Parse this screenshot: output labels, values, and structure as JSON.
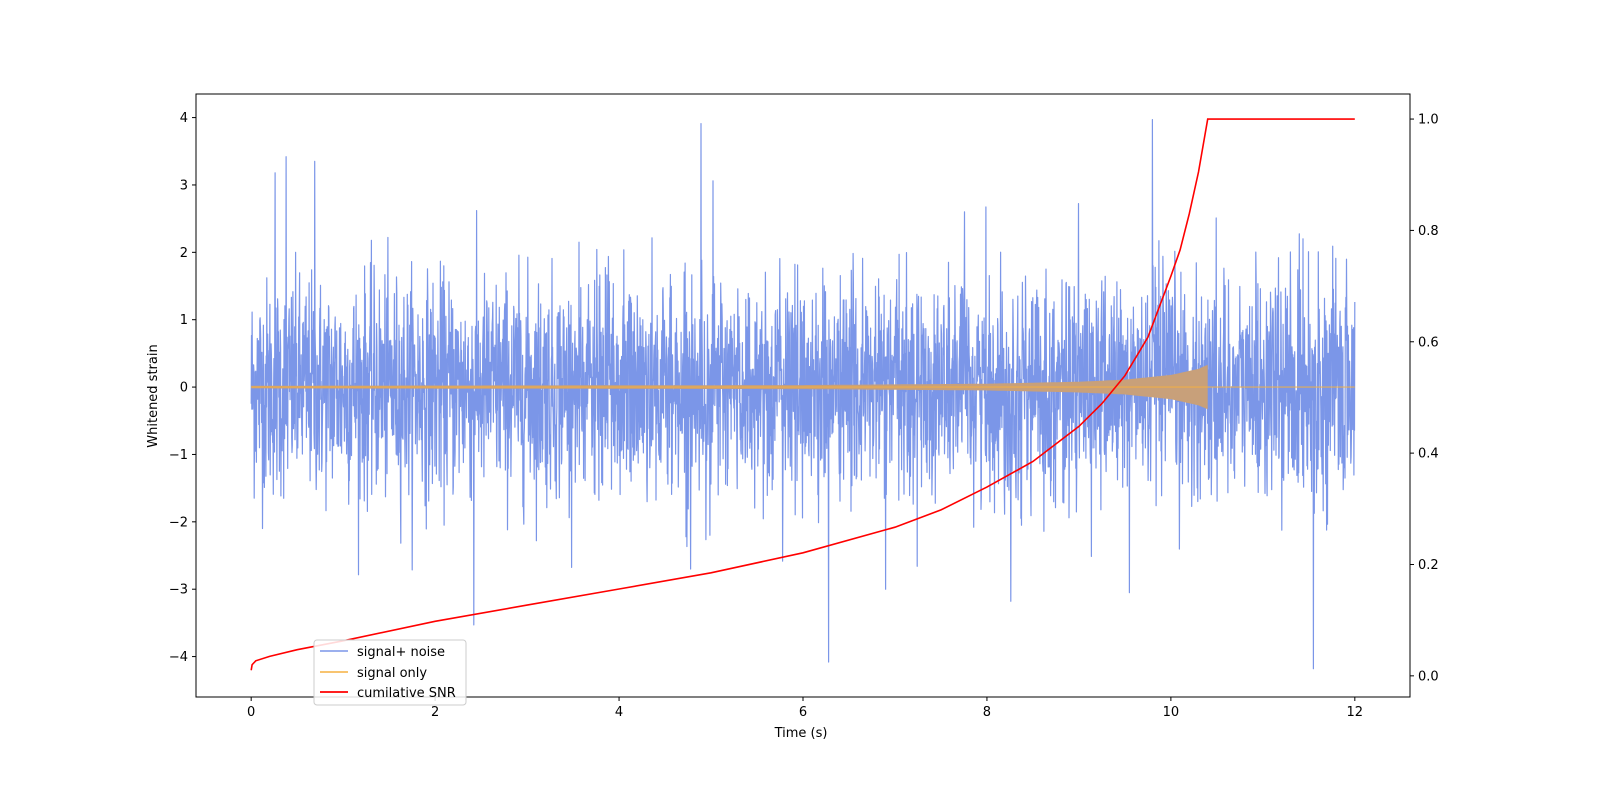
{
  "chart_data": {
    "type": "line",
    "title": "",
    "xlabel": "Time (s)",
    "ylabel": "Whitened strain",
    "y2label": "",
    "xlim": [
      -0.6,
      12.6
    ],
    "ylim": [
      -4.6,
      4.35
    ],
    "y2lim": [
      -0.038,
      1.045
    ],
    "x_ticks": [
      0,
      2,
      4,
      6,
      8,
      10,
      12
    ],
    "x_tick_labels": [
      "0",
      "2",
      "4",
      "6",
      "8",
      "10",
      "12"
    ],
    "y_ticks": [
      -4,
      -3,
      -2,
      -1,
      0,
      1,
      2,
      3,
      4
    ],
    "y_tick_labels": [
      "−4",
      "−3",
      "−2",
      "−1",
      "0",
      "1",
      "2",
      "3",
      "4"
    ],
    "y2_ticks": [
      0.0,
      0.2,
      0.4,
      0.6,
      0.8,
      1.0
    ],
    "y2_tick_labels": [
      "0.0",
      "0.2",
      "0.4",
      "0.6",
      "0.8",
      "1.0"
    ],
    "grid": false,
    "legend_position": "lower-left",
    "series": [
      {
        "name": "signal+ noise",
        "axis": "left",
        "color": "#7b96e8",
        "description_values": {
          "t_start": 0,
          "t_end": 12,
          "typical_band": [
            -2.0,
            2.3
          ],
          "peaks": [
            {
              "x": 0.38,
              "y": 3.42
            },
            {
              "x": 0.69,
              "y": 3.35
            },
            {
              "x": 0.26,
              "y": 3.18
            },
            {
              "x": 4.89,
              "y": 3.91
            },
            {
              "x": 9.8,
              "y": 3.97
            },
            {
              "x": 5.02,
              "y": 3.06
            },
            {
              "x": 2.42,
              "y": -3.53
            },
            {
              "x": 6.28,
              "y": -4.08
            },
            {
              "x": 11.55,
              "y": -4.18
            },
            {
              "x": 8.26,
              "y": -3.18
            },
            {
              "x": 9.55,
              "y": -3.05
            },
            {
              "x": 6.9,
              "y": -3.0
            }
          ],
          "amplitude_sigma": 0.8
        }
      },
      {
        "name": "signal only",
        "axis": "left",
        "color": "#f5b041",
        "description_values": {
          "t_start": 0,
          "t_merger": 10.4,
          "t_end": 12,
          "envelope": [
            [
              0,
              0.02
            ],
            [
              6,
              0.03
            ],
            [
              8,
              0.05
            ],
            [
              9,
              0.08
            ],
            [
              9.5,
              0.11
            ],
            [
              10,
              0.18
            ],
            [
              10.3,
              0.27
            ],
            [
              10.4,
              0.33
            ]
          ]
        }
      },
      {
        "name": "cumilative SNR",
        "axis": "right",
        "color": "#ff0000",
        "x": [
          0,
          0.01,
          0.05,
          0.2,
          0.5,
          1,
          2,
          3,
          4,
          5,
          6,
          7,
          7.5,
          8,
          8.5,
          9,
          9.25,
          9.5,
          9.75,
          10,
          10.1,
          10.2,
          10.3,
          10.4,
          12
        ],
        "values": [
          0.01,
          0.02,
          0.027,
          0.035,
          0.047,
          0.063,
          0.098,
          0.127,
          0.156,
          0.185,
          0.221,
          0.267,
          0.298,
          0.339,
          0.385,
          0.448,
          0.489,
          0.539,
          0.608,
          0.718,
          0.765,
          0.83,
          0.905,
          1.0,
          1.0
        ]
      }
    ]
  }
}
